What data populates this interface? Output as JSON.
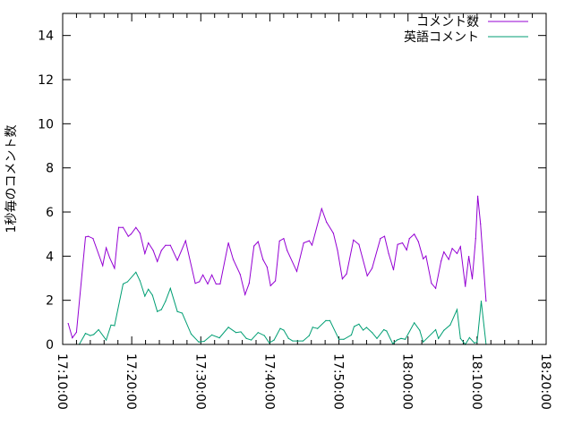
{
  "chart_data": {
    "type": "line",
    "title": "",
    "xlabel": "",
    "ylabel": "1秒毎のコメント数",
    "xlim": [
      "17:10:00",
      "18:20:00"
    ],
    "ylim": [
      0,
      15
    ],
    "x_ticks": [
      "17:10:00",
      "17:20:00",
      "17:30:00",
      "17:40:00",
      "17:50:00",
      "18:00:00",
      "18:10:00",
      "18:20:00"
    ],
    "y_ticks": [
      "0",
      "2",
      "4",
      "6",
      "8",
      "10",
      "12",
      "14"
    ],
    "grid": false,
    "legend_position": "top-right",
    "series": [
      {
        "name": "コメント数",
        "color": "#9400d3",
        "x": [
          "17:10:48",
          "17:11:24",
          "17:12:00",
          "17:13:18",
          "17:13:42",
          "17:14:24",
          "17:15:48",
          "17:16:18",
          "17:16:48",
          "17:17:30",
          "17:18:06",
          "17:18:45",
          "17:19:30",
          "17:19:54",
          "17:20:36",
          "17:21:12",
          "17:21:54",
          "17:22:24",
          "17:23:06",
          "17:23:42",
          "17:24:18",
          "17:24:54",
          "17:25:36",
          "17:26:36",
          "17:27:48",
          "17:29:12",
          "17:29:48",
          "17:30:18",
          "17:31:00",
          "17:31:36",
          "17:32:12",
          "17:32:48",
          "17:34:00",
          "17:34:42",
          "17:35:42",
          "17:36:24",
          "17:37:00",
          "17:37:42",
          "17:38:18",
          "17:39:00",
          "17:39:36",
          "17:40:06",
          "17:40:48",
          "17:41:24",
          "17:42:00",
          "17:42:30",
          "17:43:54",
          "17:44:54",
          "17:45:42",
          "17:46:06",
          "17:47:30",
          "17:48:12",
          "17:49:12",
          "17:49:48",
          "17:50:30",
          "17:51:06",
          "17:52:06",
          "17:52:54",
          "17:54:06",
          "17:54:48",
          "17:56:00",
          "17:56:36",
          "17:57:12",
          "17:57:54",
          "17:58:30",
          "17:59:12",
          "17:59:48",
          "18:00:12",
          "18:00:54",
          "18:01:30",
          "18:02:12",
          "18:02:36",
          "18:03:24",
          "18:04:00",
          "18:04:48",
          "18:05:12",
          "18:05:54",
          "18:06:24",
          "18:07:06",
          "18:07:36",
          "18:08:18",
          "18:08:48",
          "18:09:18",
          "18:09:48",
          "18:10:06",
          "18:10:30",
          "18:11:18"
        ],
        "values": [
          0.95,
          0.3,
          0.55,
          4.87,
          4.9,
          4.8,
          3.57,
          4.38,
          3.93,
          3.45,
          5.3,
          5.3,
          4.9,
          5.0,
          5.3,
          5.04,
          4.12,
          4.6,
          4.26,
          3.76,
          4.26,
          4.49,
          4.49,
          3.81,
          4.7,
          2.77,
          2.84,
          3.15,
          2.74,
          3.15,
          2.74,
          2.74,
          4.6,
          3.85,
          3.17,
          2.26,
          2.77,
          4.46,
          4.66,
          3.85,
          3.51,
          2.66,
          2.88,
          4.69,
          4.8,
          4.26,
          3.31,
          4.6,
          4.7,
          4.5,
          6.15,
          5.54,
          5.04,
          4.26,
          2.97,
          3.2,
          4.73,
          4.53,
          3.11,
          3.45,
          4.8,
          4.9,
          4.12,
          3.38,
          4.53,
          4.6,
          4.28,
          4.8,
          5.0,
          4.66,
          3.88,
          4.01,
          2.77,
          2.54,
          3.78,
          4.19,
          3.85,
          4.35,
          4.12,
          4.43,
          2.63,
          3.99,
          2.97,
          4.8,
          6.72,
          5.47,
          1.96
        ]
      },
      {
        "name": "英語コメント",
        "color": "#009e73",
        "x": [
          "17:12:24",
          "17:13:18",
          "17:14:00",
          "17:14:30",
          "17:15:12",
          "17:16:18",
          "17:17:00",
          "17:17:30",
          "17:18:45",
          "17:19:24",
          "17:20:36",
          "17:21:12",
          "17:21:54",
          "17:22:24",
          "17:23:00",
          "17:23:42",
          "17:24:18",
          "17:24:54",
          "17:25:36",
          "17:26:36",
          "17:27:18",
          "17:28:36",
          "17:29:42",
          "17:30:30",
          "17:31:36",
          "17:32:42",
          "17:34:00",
          "17:35:06",
          "17:35:48",
          "17:36:36",
          "17:37:18",
          "17:38:18",
          "17:39:12",
          "17:39:54",
          "17:40:36",
          "17:41:30",
          "17:42:00",
          "17:42:42",
          "17:43:18",
          "17:44:48",
          "17:45:42",
          "17:46:12",
          "17:46:54",
          "17:48:06",
          "17:48:42",
          "17:50:00",
          "17:50:42",
          "17:51:48",
          "17:52:12",
          "17:52:54",
          "17:53:30",
          "17:54:00",
          "17:54:48",
          "17:55:30",
          "17:56:30",
          "17:56:54",
          "17:57:48",
          "17:58:24",
          "17:59:00",
          "17:59:36",
          "18:00:54",
          "18:01:42",
          "18:02:12",
          "18:04:00",
          "18:04:24",
          "18:05:12",
          "18:06:06",
          "18:07:06",
          "18:07:36",
          "18:08:18",
          "18:08:54",
          "18:09:36",
          "18:10:00",
          "18:10:36",
          "18:11:18"
        ],
        "values": [
          0,
          0.5,
          0.4,
          0.45,
          0.67,
          0.2,
          0.88,
          0.85,
          2.74,
          2.84,
          3.27,
          2.88,
          2.19,
          2.5,
          2.23,
          1.49,
          1.58,
          1.96,
          2.54,
          1.49,
          1.42,
          0.47,
          0.11,
          0.14,
          0.43,
          0.3,
          0.78,
          0.54,
          0.57,
          0.27,
          0.2,
          0.54,
          0.4,
          0.07,
          0.2,
          0.72,
          0.65,
          0.27,
          0.16,
          0.16,
          0.4,
          0.78,
          0.72,
          1.08,
          1.08,
          0.23,
          0.23,
          0.43,
          0.81,
          0.92,
          0.65,
          0.77,
          0.54,
          0.27,
          0.67,
          0.61,
          0.03,
          0.2,
          0.27,
          0.23,
          0.98,
          0.64,
          0.11,
          0.67,
          0.27,
          0.64,
          0.88,
          1.58,
          0.27,
          0,
          0.31,
          0.07,
          0.1,
          1.96,
          0
        ]
      }
    ]
  }
}
